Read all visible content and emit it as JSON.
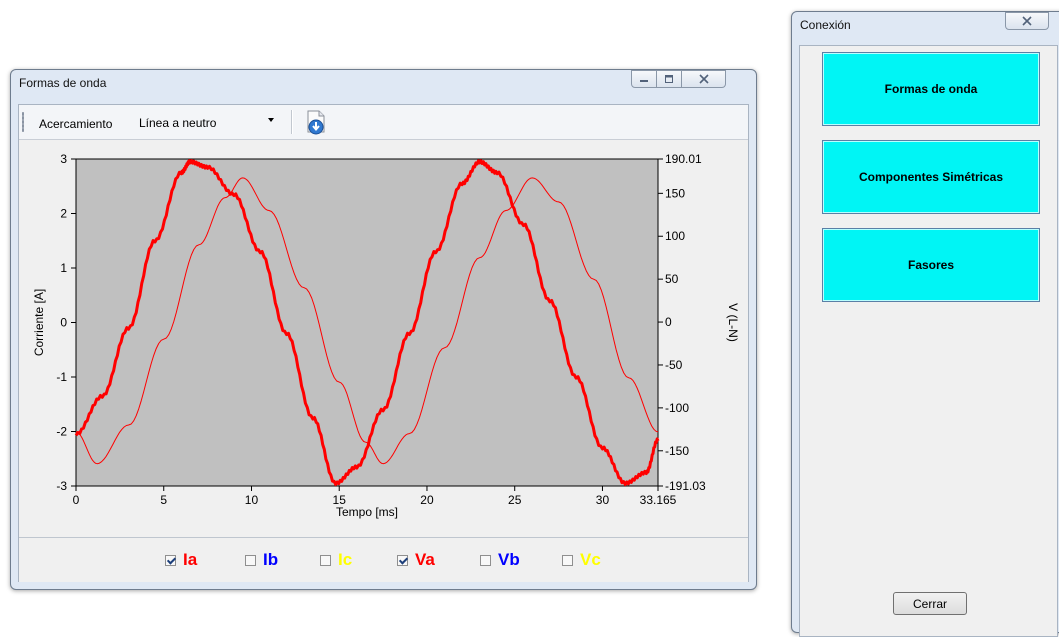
{
  "waveform_window": {
    "title": "Formas de onda",
    "toolbar": {
      "zoom_label": "Acercamiento",
      "view_select": "Línea a neutro",
      "save_icon": "document-download-icon"
    },
    "legend": [
      {
        "label": "Ia",
        "checked": true,
        "color": "#ff0000"
      },
      {
        "label": "Ib",
        "checked": false,
        "color": "#0000ff"
      },
      {
        "label": "Ic",
        "checked": false,
        "color": "#ffff00"
      },
      {
        "label": "Va",
        "checked": true,
        "color": "#ff0000"
      },
      {
        "label": "Vb",
        "checked": false,
        "color": "#0000ff"
      },
      {
        "label": "Vc",
        "checked": false,
        "color": "#ffff00"
      }
    ]
  },
  "chart_data": {
    "type": "line",
    "xlabel": "Tempo [ms]",
    "ylabel_left": "Corriente [A]",
    "ylabel_right": "V (L-N)",
    "xlim": [
      0,
      33.165
    ],
    "x_ticks": [
      "0",
      "5",
      "10",
      "15",
      "20",
      "25",
      "30",
      "33.165"
    ],
    "y_left_lim": [
      -3,
      3
    ],
    "y_left_ticks": [
      "3",
      "2",
      "1",
      "0",
      "-1",
      "-2",
      "-3"
    ],
    "y_right_lim": [
      -191.03,
      190.01
    ],
    "y_right_ticks": [
      "190.01",
      "150",
      "100",
      "50",
      "0",
      "-50",
      "-100",
      "-150",
      "-191.03"
    ],
    "plot_background": "#c0c0c0",
    "series": [
      {
        "name": "Ia",
        "axis": "left",
        "color": "#ff0000",
        "x": [
          0,
          1.5,
          3,
          4.5,
          6,
          6.5,
          7.5,
          9,
          10.5,
          12,
          13.5,
          14.8,
          16,
          17.5,
          19,
          20.5,
          22,
          23,
          24,
          25.5,
          27,
          28.5,
          30,
          31.3,
          32.5,
          33.165
        ],
        "y": [
          -2.05,
          -1.35,
          -0.1,
          1.5,
          2.75,
          2.95,
          2.85,
          2.35,
          1.3,
          -0.2,
          -1.75,
          -2.95,
          -2.65,
          -1.6,
          -0.2,
          1.3,
          2.55,
          2.95,
          2.75,
          1.8,
          0.4,
          -1.0,
          -2.3,
          -2.95,
          -2.75,
          -2.15
        ]
      },
      {
        "name": "Va",
        "axis": "right",
        "color": "#ff0000",
        "x": [
          0,
          1.2,
          3,
          5,
          7,
          8.5,
          9.5,
          11,
          13,
          15,
          16.5,
          17.5,
          19,
          21,
          23,
          24.5,
          26,
          27.5,
          29.5,
          31.5,
          33.165
        ],
        "y": [
          -128,
          -165,
          -120,
          -20,
          90,
          145,
          168,
          130,
          40,
          -70,
          -140,
          -165,
          -130,
          -30,
          75,
          130,
          168,
          140,
          50,
          -65,
          -128
        ]
      }
    ]
  },
  "connection_window": {
    "title": "Conexión",
    "buttons": [
      "Formas de onda",
      "Componentes Simétricas",
      "Fasores"
    ],
    "close_label": "Cerrar"
  },
  "window_controls": {
    "minimize_icon": "minimize-icon",
    "maximize_icon": "maximize-icon",
    "close_icon": "close-icon"
  }
}
